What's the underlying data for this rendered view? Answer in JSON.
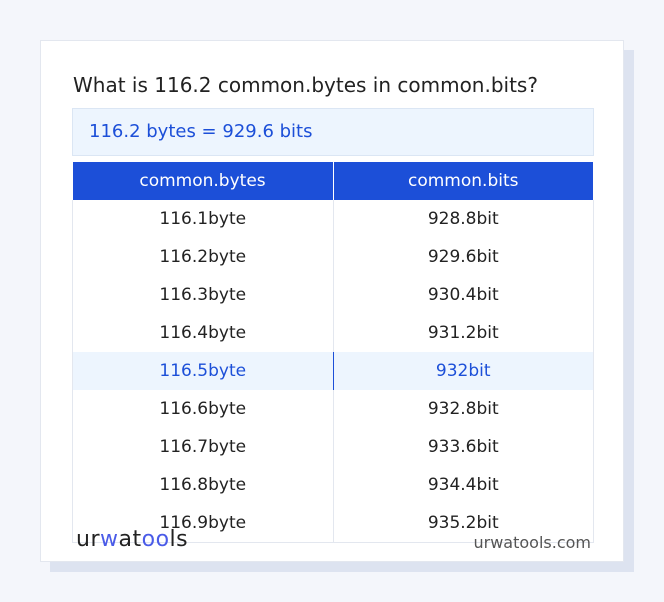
{
  "title": "What is 116.2 common.bytes in common.bits?",
  "result": "116.2 bytes = 929.6 bits",
  "table": {
    "headers": [
      "common.bytes",
      "common.bits"
    ],
    "rows": [
      [
        "116.1byte",
        "928.8bit"
      ],
      [
        "116.2byte",
        "929.6bit"
      ],
      [
        "116.3byte",
        "930.4bit"
      ],
      [
        "116.4byte",
        "931.2bit"
      ],
      [
        "116.5byte",
        "932bit"
      ],
      [
        "116.6byte",
        "932.8bit"
      ],
      [
        "116.7byte",
        "933.6bit"
      ],
      [
        "116.8byte",
        "934.4bit"
      ],
      [
        "116.9byte",
        "935.2bit"
      ]
    ],
    "highlighted_row": 4
  },
  "footer": {
    "logo": "urwatools",
    "logo_parts": [
      "ur",
      "w",
      "at",
      "oo",
      "ls"
    ],
    "site": "urwatools.com"
  },
  "colors": {
    "accent": "#1c4fd8",
    "highlight_bg": "#edf5fe"
  }
}
